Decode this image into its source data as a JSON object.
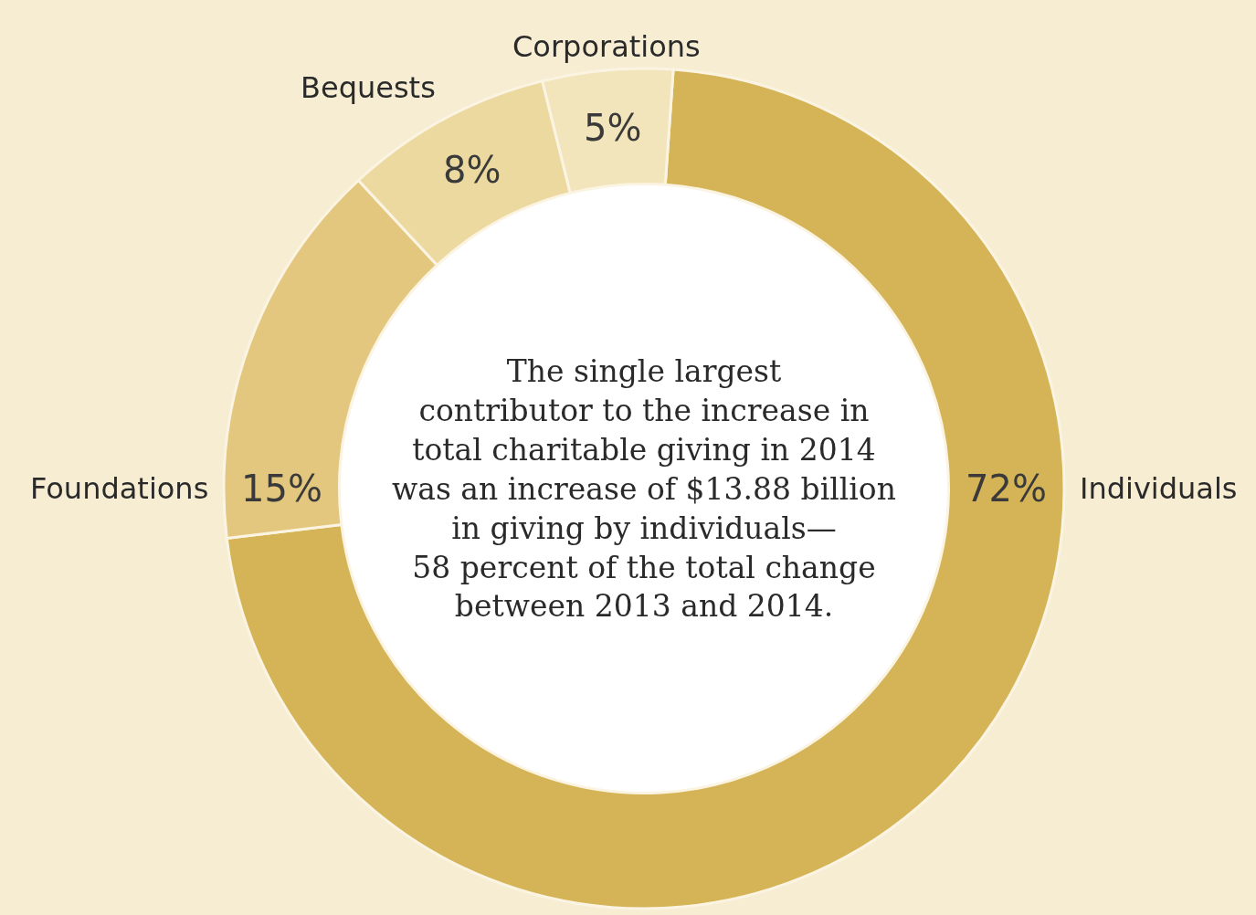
{
  "chart_data": {
    "type": "donut",
    "categories": [
      "Individuals",
      "Foundations",
      "Bequests",
      "Corporations"
    ],
    "values": [
      72,
      15,
      8,
      5
    ],
    "value_labels": [
      "72%",
      "15%",
      "8%",
      "5%"
    ],
    "colors": [
      "#d4b456",
      "#e3c77f",
      "#ecd9a0",
      "#f2e5bc"
    ],
    "annotations": [
      "The single largest\ncontributor to the increase in\ntotal charitable giving in 2014\nwas an increase of $13.88 billion\nin giving by individuals—\n58 percent of the total change\nbetween 2013 and 2014."
    ],
    "legend": false
  }
}
